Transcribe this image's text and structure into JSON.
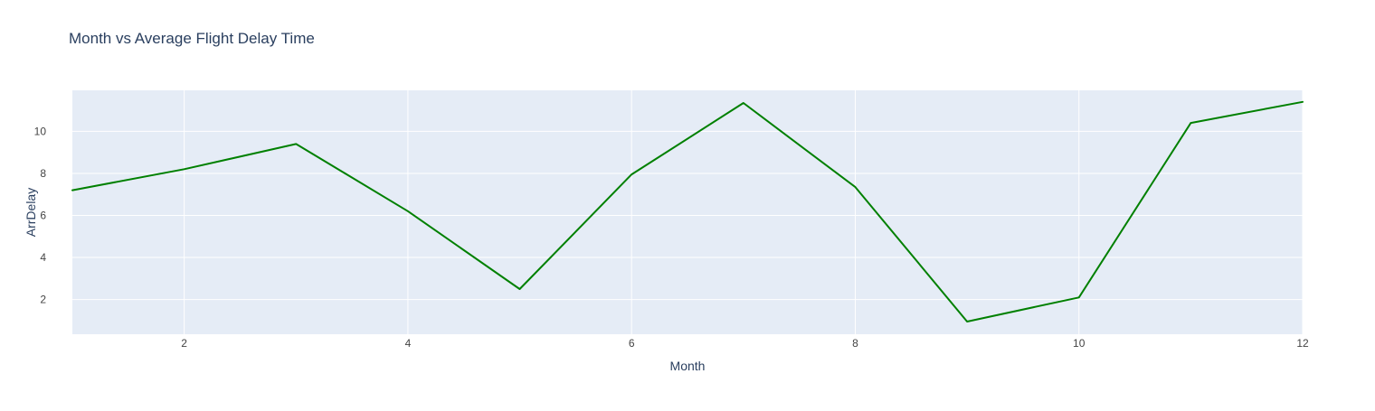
{
  "chart_data": {
    "type": "line",
    "title": "Month vs Average Flight Delay Time",
    "xlabel": "Month",
    "ylabel": "ArrDelay",
    "xlim": [
      1,
      12
    ],
    "ylim": [
      0.35,
      11.95
    ],
    "x_ticks": [
      2,
      4,
      6,
      8,
      10,
      12
    ],
    "y_ticks": [
      2,
      4,
      6,
      8,
      10
    ],
    "grid": true,
    "legend": "none",
    "series": [
      {
        "color": "#008000",
        "x": [
          1,
          2,
          3,
          4,
          5,
          6,
          7,
          8,
          9,
          10,
          11,
          12
        ],
        "y": [
          7.2,
          8.2,
          9.4,
          6.2,
          2.5,
          7.95,
          11.35,
          7.35,
          0.95,
          2.1,
          10.4,
          11.4
        ]
      }
    ]
  },
  "colors": {
    "plot_background": "#e5ecf6",
    "gridline": "#ffffff",
    "text": "#2a3f5f",
    "tick_text": "#444444"
  }
}
